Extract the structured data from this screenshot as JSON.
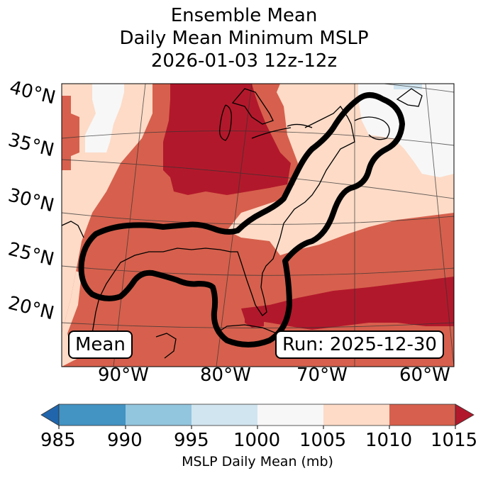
{
  "title": {
    "line1": "Ensemble Mean",
    "line2": "Daily Mean Minimum MSLP",
    "line3": "2026-01-03 12z-12z"
  },
  "map": {
    "lat_labels": [
      "40°N",
      "35°N",
      "30°N",
      "25°N",
      "20°N"
    ],
    "lon_labels": [
      "90°W",
      "80°W",
      "70°W",
      "60°W"
    ],
    "annotation_left": "Mean",
    "annotation_right": "Run: 2025-12-30"
  },
  "colorbar": {
    "ticks": [
      "985",
      "990",
      "995",
      "1000",
      "1005",
      "1010",
      "1015"
    ],
    "label": "MSLP Daily Mean (mb)",
    "bins": [
      {
        "range": "<985",
        "color": "#2166ac"
      },
      {
        "range": "985-990",
        "color": "#4393c3"
      },
      {
        "range": "990-995",
        "color": "#92c5de"
      },
      {
        "range": "995-1000",
        "color": "#d1e5f0"
      },
      {
        "range": "1000-1005",
        "color": "#f7f7f7"
      },
      {
        "range": "1005-1010",
        "color": "#fddbc7"
      },
      {
        "range": "1010-1015",
        "color": "#d6604d"
      },
      {
        "range": ">1015",
        "color": "#b2182b"
      }
    ],
    "extend": "both"
  }
}
